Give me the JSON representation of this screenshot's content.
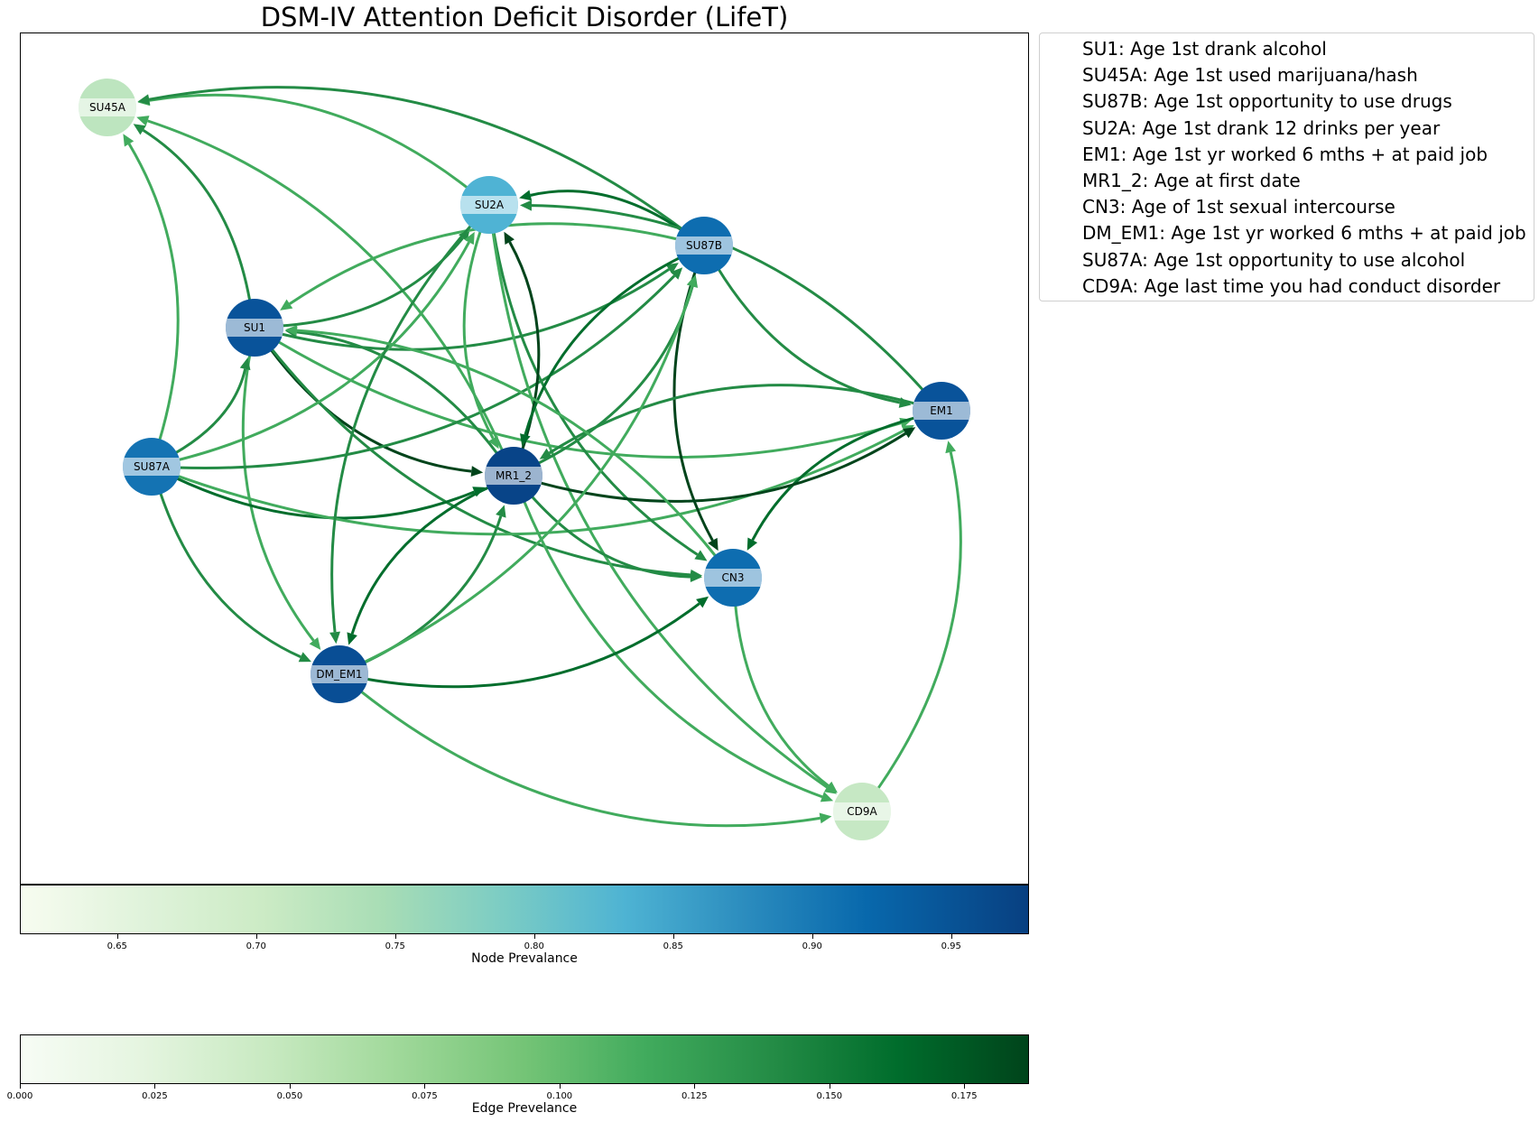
{
  "title": "DSM-IV Attention Deficit Disorder (LifeT)",
  "legend": [
    "SU1: Age 1st drank alcohol",
    "SU45A: Age 1st used marijuana/hash",
    "SU87B: Age 1st opportunity to use drugs",
    "SU2A: Age 1st drank 12 drinks per year",
    "EM1: Age 1st yr worked 6 mths + at paid job",
    "MR1_2: Age at first date",
    "CN3: Age of 1st sexual intercourse",
    "DM_EM1: Age 1st yr worked 6 mths + at paid job",
    "SU87A: Age 1st opportunity to use alcohol",
    "CD9A: Age last time you had conduct disorder"
  ],
  "nodes": [
    {
      "id": "SU45A",
      "label": "SU45A",
      "color": "#bde5bf"
    },
    {
      "id": "SU2A",
      "label": "SU2A",
      "color": "#4fb3d4"
    },
    {
      "id": "SU87B",
      "label": "SU87B",
      "color": "#0e6db0"
    },
    {
      "id": "SU1",
      "label": "SU1",
      "color": "#09539a"
    },
    {
      "id": "EM1",
      "label": "EM1",
      "color": "#09539a"
    },
    {
      "id": "SU87A",
      "label": "SU87A",
      "color": "#1473b3"
    },
    {
      "id": "MR1_2",
      "label": "MR1_2",
      "color": "#084488"
    },
    {
      "id": "CN3",
      "label": "CN3",
      "color": "#0e6db0"
    },
    {
      "id": "DM_EM1",
      "label": "DM_EM1",
      "color": "#094e95"
    },
    {
      "id": "CD9A",
      "label": "CD9A",
      "color": "#c6e8c4"
    }
  ],
  "edges": [
    {
      "from": "SU1",
      "to": "SU45A",
      "color": "#238b45"
    },
    {
      "from": "SU87A",
      "to": "SU45A",
      "color": "#41ab5d"
    },
    {
      "from": "SU2A",
      "to": "SU45A",
      "color": "#41ab5d"
    },
    {
      "from": "SU87B",
      "to": "SU45A",
      "color": "#238b45"
    },
    {
      "from": "MR1_2",
      "to": "SU45A",
      "color": "#41ab5d"
    },
    {
      "from": "SU1",
      "to": "SU2A",
      "color": "#238b45"
    },
    {
      "from": "SU87B",
      "to": "SU2A",
      "color": "#006d2c"
    },
    {
      "from": "SU87B",
      "to": "SU1",
      "color": "#41ab5d"
    },
    {
      "from": "SU1",
      "to": "SU87B",
      "color": "#238b45"
    },
    {
      "from": "SU1",
      "to": "EM1",
      "color": "#41ab5d"
    },
    {
      "from": "SU1",
      "to": "MR1_2",
      "color": "#00441b"
    },
    {
      "from": "SU1",
      "to": "CN3",
      "color": "#238b45"
    },
    {
      "from": "SU1",
      "to": "DM_EM1",
      "color": "#41ab5d"
    },
    {
      "from": "SU87A",
      "to": "SU1",
      "color": "#238b45"
    },
    {
      "from": "MR1_2",
      "to": "SU1",
      "color": "#238b45"
    },
    {
      "from": "SU87A",
      "to": "MR1_2",
      "color": "#006d2c"
    },
    {
      "from": "SU87A",
      "to": "SU87B",
      "color": "#238b45"
    },
    {
      "from": "SU87A",
      "to": "EM1",
      "color": "#41ab5d"
    },
    {
      "from": "SU87A",
      "to": "SU2A",
      "color": "#41ab5d"
    },
    {
      "from": "SU87A",
      "to": "DM_EM1",
      "color": "#238b45"
    },
    {
      "from": "SU2A",
      "to": "MR1_2",
      "color": "#41ab5d"
    },
    {
      "from": "SU2A",
      "to": "CN3",
      "color": "#238b45"
    },
    {
      "from": "SU2A",
      "to": "DM_EM1",
      "color": "#238b45"
    },
    {
      "from": "SU2A",
      "to": "CD9A",
      "color": "#41ab5d"
    },
    {
      "from": "MR1_2",
      "to": "SU2A",
      "color": "#00441b"
    },
    {
      "from": "SU87B",
      "to": "MR1_2",
      "color": "#006d2c"
    },
    {
      "from": "SU87B",
      "to": "EM1",
      "color": "#238b45"
    },
    {
      "from": "SU87B",
      "to": "CN3",
      "color": "#00441b"
    },
    {
      "from": "MR1_2",
      "to": "SU87B",
      "color": "#238b45"
    },
    {
      "from": "EM1",
      "to": "SU2A",
      "color": "#238b45"
    },
    {
      "from": "EM1",
      "to": "MR1_2",
      "color": "#238b45"
    },
    {
      "from": "EM1",
      "to": "CN3",
      "color": "#006d2c"
    },
    {
      "from": "MR1_2",
      "to": "EM1",
      "color": "#00441b"
    },
    {
      "from": "MR1_2",
      "to": "CN3",
      "color": "#238b45"
    },
    {
      "from": "MR1_2",
      "to": "DM_EM1",
      "color": "#006d2c"
    },
    {
      "from": "MR1_2",
      "to": "CD9A",
      "color": "#41ab5d"
    },
    {
      "from": "DM_EM1",
      "to": "MR1_2",
      "color": "#238b45"
    },
    {
      "from": "DM_EM1",
      "to": "CN3",
      "color": "#006d2c"
    },
    {
      "from": "DM_EM1",
      "to": "CD9A",
      "color": "#41ab5d"
    },
    {
      "from": "DM_EM1",
      "to": "SU87B",
      "color": "#41ab5d"
    },
    {
      "from": "CN3",
      "to": "CD9A",
      "color": "#41ab5d"
    },
    {
      "from": "CN3",
      "to": "SU1",
      "color": "#41ab5d"
    },
    {
      "from": "CD9A",
      "to": "EM1",
      "color": "#41ab5d"
    }
  ],
  "node_colorbar": {
    "label": "Node Prevalance",
    "min": 0.615,
    "max": 0.978,
    "ticks": [
      "0.65",
      "0.70",
      "0.75",
      "0.80",
      "0.85",
      "0.90",
      "0.95"
    ],
    "tick_values": [
      0.65,
      0.7,
      0.75,
      0.8,
      0.85,
      0.9,
      0.95
    ]
  },
  "edge_colorbar": {
    "label": "Edge Prevelance",
    "min": 0.0,
    "max": 0.187,
    "ticks": [
      "0.000",
      "0.025",
      "0.050",
      "0.075",
      "0.100",
      "0.125",
      "0.150",
      "0.175"
    ],
    "tick_values": [
      0.0,
      0.025,
      0.05,
      0.075,
      0.1,
      0.125,
      0.15,
      0.175
    ]
  }
}
